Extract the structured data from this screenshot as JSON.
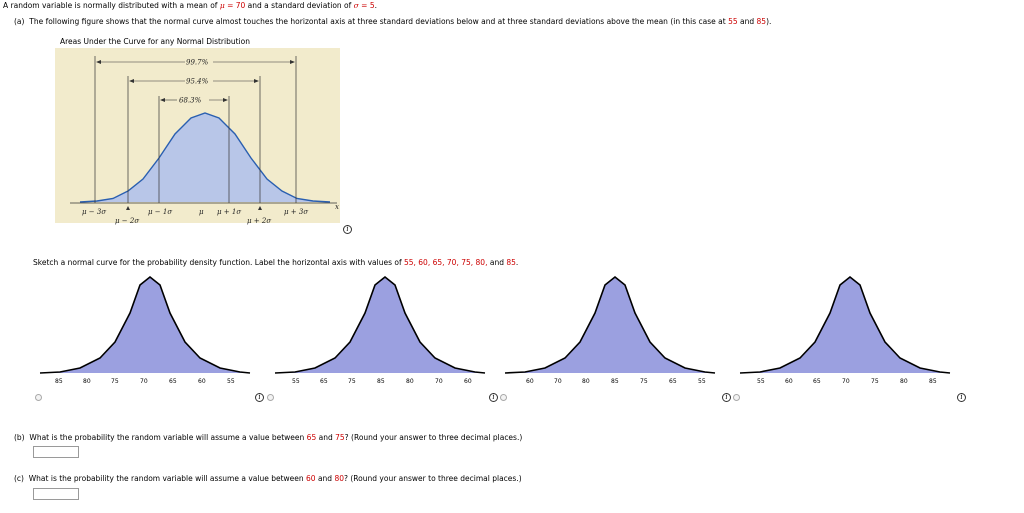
{
  "intro": {
    "text1": "A random variable is normally distributed with a mean of ",
    "mu_symbol": "μ",
    "eq_mu": " = ",
    "mu_value": "70",
    "text2": " and a standard deviation of ",
    "sigma_symbol": "σ",
    "eq_sigma": " = ",
    "sigma_value": "5",
    "period": "."
  },
  "part_a": {
    "label": "(a)",
    "text1": "The following figure shows that the normal curve almost touches the horizontal axis at three standard deviations below and at three standard deviations above the mean (in this case at ",
    "low_value": "55",
    "and": " and ",
    "high_value": "85",
    "close": ")."
  },
  "figure": {
    "title": "Areas Under the Curve for any Normal Distribution",
    "pct_997": "99.7%",
    "pct_954": "95.4%",
    "pct_683": "68.3%",
    "lbl_m3": "μ − 3σ",
    "lbl_m2": "μ − 2σ",
    "lbl_m1": "μ − 1σ",
    "lbl_mu": "μ",
    "lbl_p1": "μ + 1σ",
    "lbl_p2": "μ + 2σ",
    "lbl_p3": "μ + 3σ",
    "lbl_x": "x",
    "colors": {
      "background": "#f2ebcc",
      "fill": "#b8c6e8",
      "curve": "#2a5fb0"
    }
  },
  "sketch": {
    "text1": "Sketch a normal curve for the probability density function. Label the horizontal axis with values of ",
    "values": "55, 60, 65, 70, 75, 80,",
    "and": " and ",
    "last": "85",
    "period": "."
  },
  "options": [
    {
      "ticks": [
        "85",
        "80",
        "75",
        "70",
        "65",
        "60",
        "55"
      ]
    },
    {
      "ticks": [
        "55",
        "65",
        "75",
        "85",
        "80",
        "70",
        "60"
      ]
    },
    {
      "ticks": [
        "60",
        "70",
        "80",
        "85",
        "75",
        "65",
        "55"
      ]
    },
    {
      "ticks": [
        "55",
        "60",
        "65",
        "70",
        "75",
        "80",
        "85"
      ]
    }
  ],
  "part_b": {
    "label": "(b)",
    "text1": "What is the probability the random variable will assume a value between ",
    "v1": "65",
    "and": " and ",
    "v2": "75",
    "text2": "? (Round your answer to three decimal places.)",
    "answer": ""
  },
  "part_c": {
    "label": "(c)",
    "text1": "What is the probability the random variable will assume a value between ",
    "v1": "60",
    "and": " and ",
    "v2": "80",
    "text2": "? (Round your answer to three decimal places.)",
    "answer": ""
  },
  "info_glyph": "i",
  "option_fill_color": "#9ba0e0"
}
